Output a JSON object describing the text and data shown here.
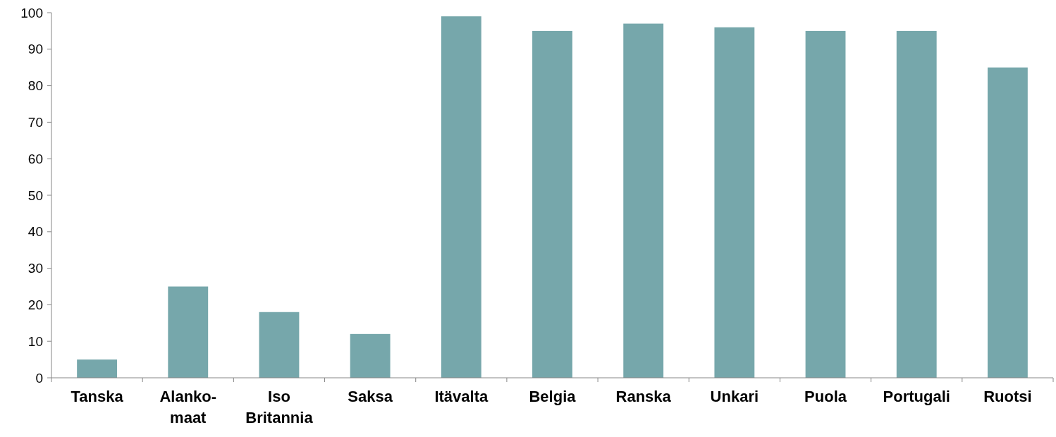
{
  "chart_data": {
    "type": "bar",
    "categories": [
      "Tanska",
      "Alanko-maat",
      "Iso Britannia",
      "Saksa",
      "Itävalta",
      "Belgia",
      "Ranska",
      "Unkari",
      "Puola",
      "Portugali",
      "Ruotsi"
    ],
    "values": [
      5,
      25,
      18,
      12,
      99,
      95,
      97,
      96,
      95,
      95,
      85
    ],
    "color": "#76a7ab",
    "ylim": [
      0,
      100
    ],
    "yticks": [
      0,
      10,
      20,
      30,
      40,
      50,
      60,
      70,
      80,
      90,
      100
    ],
    "grid": false
  }
}
